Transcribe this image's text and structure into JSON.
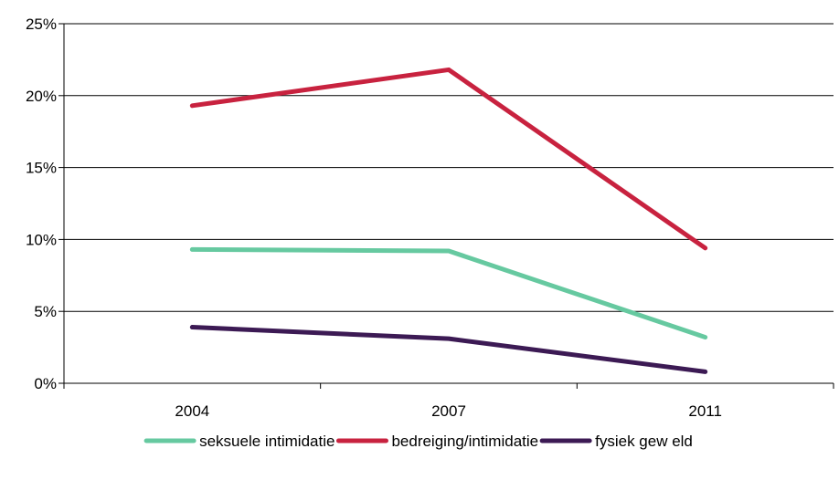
{
  "chart_data": {
    "type": "line",
    "categories": [
      "2004",
      "2007",
      "2011"
    ],
    "series": [
      {
        "name": "seksuele intimidatie",
        "values": [
          9.3,
          9.2,
          3.2
        ],
        "color": "#66c9a0"
      },
      {
        "name": "bedreiging/intimidatie",
        "values": [
          19.3,
          21.8,
          9.4
        ],
        "color": "#c8223f"
      },
      {
        "name": "fysiek gew eld",
        "values": [
          3.9,
          3.1,
          0.8
        ],
        "color": "#3c1a54"
      }
    ],
    "y_ticks": [
      "0%",
      "5%",
      "10%",
      "15%",
      "20%",
      "25%"
    ],
    "y_tick_values": [
      0,
      5,
      10,
      15,
      20,
      25
    ],
    "ylim": [
      0,
      25
    ],
    "grid": true,
    "legend_position": "bottom",
    "title": "",
    "xlabel": "",
    "ylabel": ""
  }
}
